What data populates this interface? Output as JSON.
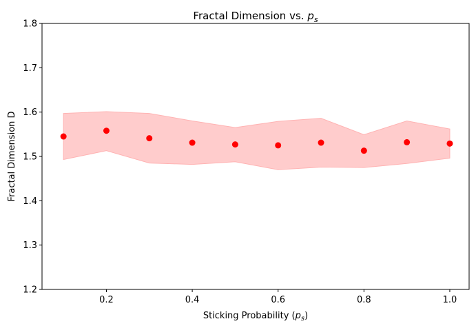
{
  "chart_data": {
    "type": "scatter",
    "title": "Fractal Dimension vs. ",
    "title_math": "p",
    "title_math_sub": "s",
    "xlabel": "Sticking Probability (",
    "xlabel_math": "p",
    "xlabel_math_sub": "s",
    "xlabel_close": ")",
    "ylabel": "Fractal Dimension D",
    "xlim": [
      0.05,
      1.045
    ],
    "ylim": [
      1.2,
      1.8
    ],
    "x_ticks": [
      0.2,
      0.4,
      0.6,
      0.8,
      1.0
    ],
    "x_tick_labels": [
      "0.2",
      "0.4",
      "0.6",
      "0.8",
      "1.0"
    ],
    "y_ticks": [
      1.2,
      1.3,
      1.4,
      1.5,
      1.6,
      1.7,
      1.8
    ],
    "y_tick_labels": [
      "1.2",
      "1.3",
      "1.4",
      "1.5",
      "1.6",
      "1.7",
      "1.8"
    ],
    "grid": false,
    "series": [
      {
        "x": [
          0.1,
          0.2,
          0.3,
          0.4,
          0.5,
          0.6,
          0.7,
          0.8,
          0.9,
          1.0
        ],
        "y": [
          1.545,
          1.558,
          1.541,
          1.531,
          1.527,
          1.525,
          1.531,
          1.513,
          1.532,
          1.529
        ],
        "lower": [
          1.493,
          1.513,
          1.485,
          1.482,
          1.488,
          1.47,
          1.476,
          1.475,
          1.484,
          1.496
        ],
        "upper": [
          1.597,
          1.601,
          1.597,
          1.58,
          1.565,
          1.579,
          1.586,
          1.549,
          1.58,
          1.562
        ],
        "marker_color": "#ff0000",
        "band_color": "#ffcccc",
        "band_edge_color": "#ffb3b3"
      }
    ]
  }
}
